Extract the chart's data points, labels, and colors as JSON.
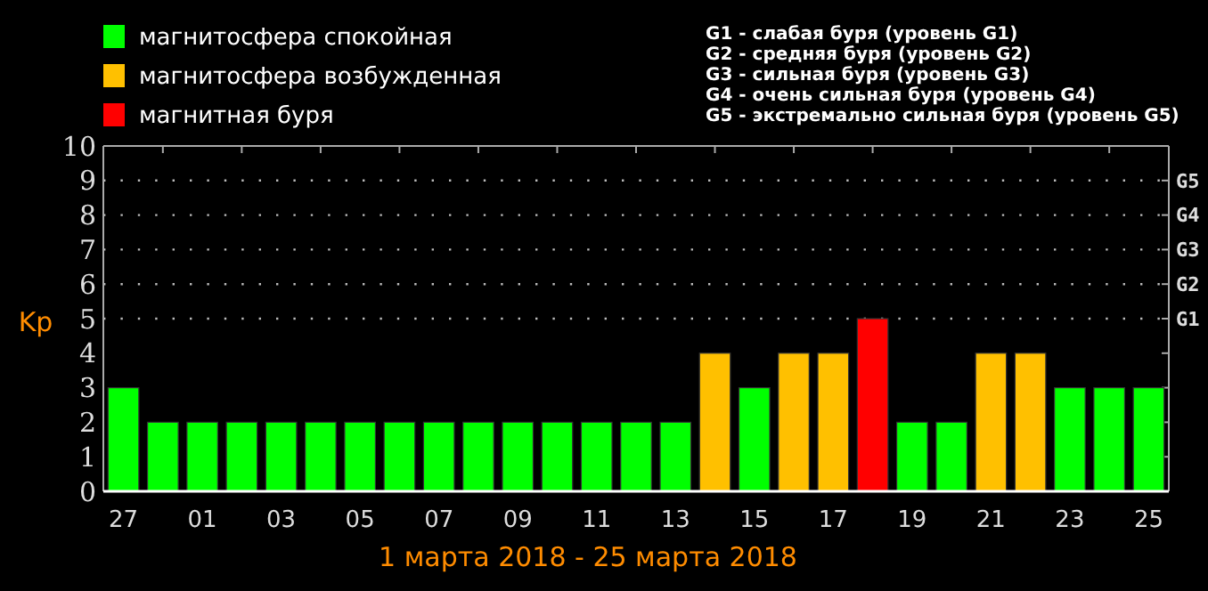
{
  "chart_data": {
    "type": "bar",
    "xlabel": "1 марта 2018 - 25 марта 2018",
    "ylabel": "Kp",
    "categories": [
      "27",
      null,
      "01",
      null,
      "03",
      null,
      "05",
      null,
      "07",
      null,
      "09",
      null,
      "11",
      null,
      "13",
      null,
      "15",
      null,
      "17",
      null,
      "19",
      null,
      "21",
      null,
      "23",
      null,
      "25"
    ],
    "series": [
      {
        "name": "магнитосфера спокойная",
        "color": "#00ff00",
        "values": [
          3,
          2,
          2,
          2,
          2,
          2,
          2,
          2,
          2,
          2,
          2,
          2,
          2,
          2,
          2,
          null,
          3,
          null,
          null,
          null,
          2,
          2,
          null,
          null,
          3,
          3,
          3
        ]
      },
      {
        "name": "магнитосфера возбужденная",
        "color": "#ffc000",
        "values": [
          null,
          null,
          null,
          null,
          null,
          null,
          null,
          null,
          null,
          null,
          null,
          null,
          null,
          null,
          null,
          4,
          null,
          4,
          4,
          null,
          null,
          null,
          4,
          4,
          null,
          null,
          null
        ]
      },
      {
        "name": "магнитная буря",
        "color": "#ff0000",
        "values": [
          null,
          null,
          null,
          null,
          null,
          null,
          null,
          null,
          null,
          null,
          null,
          null,
          null,
          null,
          null,
          null,
          null,
          null,
          null,
          5,
          null,
          null,
          null,
          null,
          null,
          null,
          null
        ]
      }
    ],
    "ylim": [
      0,
      10
    ],
    "yticks": [
      0,
      1,
      2,
      3,
      4,
      5,
      6,
      7,
      8,
      9,
      10
    ],
    "ref_lines": [
      {
        "axis": "y",
        "value": 5,
        "label": "G1",
        "line_style": "dotted"
      },
      {
        "axis": "y",
        "value": 6,
        "label": "G2",
        "line_style": "dotted"
      },
      {
        "axis": "y",
        "value": 7,
        "label": "G3",
        "line_style": "dotted"
      },
      {
        "axis": "y",
        "value": 8,
        "label": "G4",
        "line_style": "dotted"
      },
      {
        "axis": "y",
        "value": 9,
        "label": "G5",
        "line_style": "dotted"
      }
    ],
    "legend": "top left",
    "annotations": [
      "G1 - слабая буря (уровень G1)",
      "G2 - средняя буря (уровень G2)",
      "G3 - сильная буря (уровень G3)",
      "G4 - очень сильная буря (уровень G4)",
      "G5 - экстремально сильная буря (уровень G5)"
    ]
  }
}
